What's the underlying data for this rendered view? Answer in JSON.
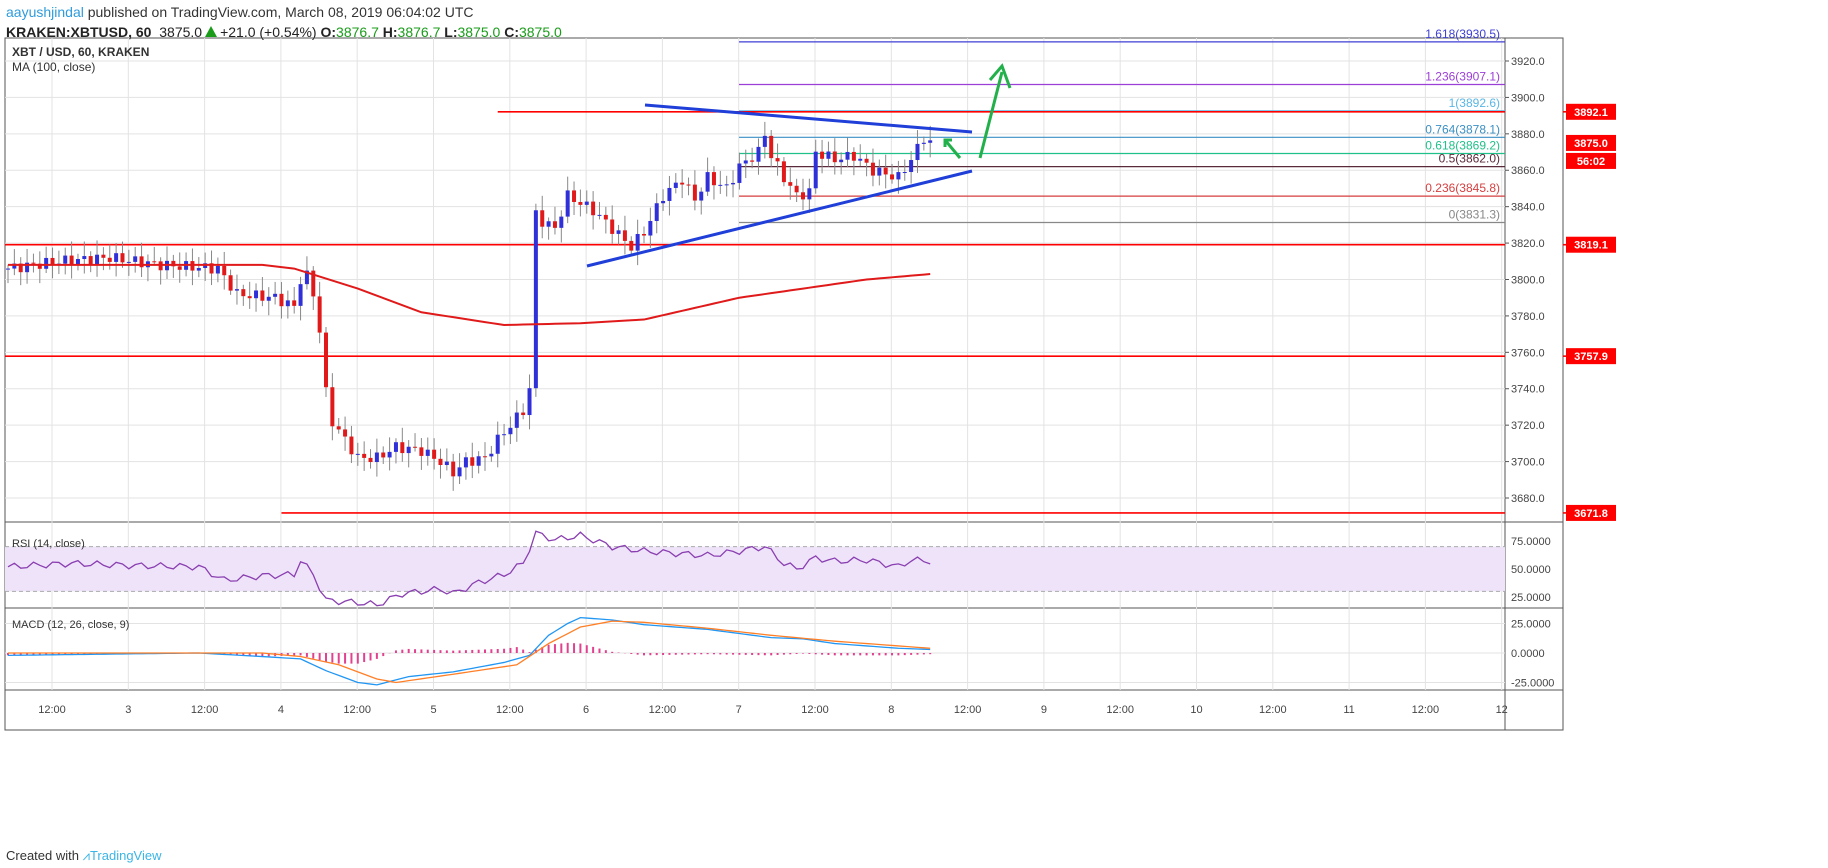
{
  "header": {
    "user": "aayushjindal",
    "published": " published on TradingView.com, March 08, 2019 06:04:02 UTC",
    "symbol": "KRAKEN:XBTUSD, 60",
    "last": "3875.0",
    "change": "+21.0 (+0.54%)",
    "o_label": "O:",
    "o": "3876.7",
    "h_label": "H:",
    "h": "3876.7",
    "l_label": "L:",
    "l": "3875.0",
    "c_label": "C:",
    "c": "3875.0"
  },
  "footer": {
    "created": "Created with",
    "brand": "TradingView"
  },
  "chart_data": {
    "type": "candlestick",
    "title": "XBT / USD, 60, KRAKEN",
    "ma_label": "MA (100, close)",
    "ylim": [
      3660,
      3940
    ],
    "y_ticks": [
      "3680.0",
      "3700.0",
      "3720.0",
      "3740.0",
      "3760.0",
      "3780.0",
      "3800.0",
      "3820.0",
      "3840.0",
      "3860.0",
      "3880.0",
      "3900.0",
      "3920.0"
    ],
    "x_ticks": [
      "12:00",
      "3",
      "12:00",
      "4",
      "12:00",
      "5",
      "12:00",
      "6",
      "12:00",
      "7",
      "12:00",
      "8",
      "12:00",
      "9",
      "12:00",
      "10",
      "12:00",
      "11",
      "12:00",
      "12"
    ],
    "price_path": [
      [
        0,
        3806
      ],
      [
        8,
        3810
      ],
      [
        16,
        3812
      ],
      [
        24,
        3808
      ],
      [
        33,
        3806
      ],
      [
        36,
        3792
      ],
      [
        42,
        3790
      ],
      [
        45,
        3785
      ],
      [
        46,
        3800
      ],
      [
        47,
        3802
      ],
      [
        48,
        3792
      ],
      [
        49,
        3772
      ],
      [
        50,
        3738
      ],
      [
        51,
        3722
      ],
      [
        53,
        3712
      ],
      [
        55,
        3702
      ],
      [
        58,
        3702
      ],
      [
        61,
        3708
      ],
      [
        65,
        3706
      ],
      [
        68,
        3700
      ],
      [
        70,
        3694
      ],
      [
        72,
        3700
      ],
      [
        75,
        3702
      ],
      [
        77,
        3712
      ],
      [
        79,
        3720
      ],
      [
        81,
        3728
      ],
      [
        82,
        3740
      ],
      [
        83,
        3836
      ],
      [
        84,
        3832
      ],
      [
        86,
        3828
      ],
      [
        88,
        3846
      ],
      [
        92,
        3838
      ],
      [
        95,
        3828
      ],
      [
        98,
        3818
      ],
      [
        100,
        3826
      ],
      [
        103,
        3846
      ],
      [
        106,
        3855
      ],
      [
        108,
        3844
      ],
      [
        110,
        3856
      ],
      [
        113,
        3850
      ],
      [
        115,
        3862
      ],
      [
        118,
        3870
      ],
      [
        119,
        3880
      ],
      [
        120,
        3868
      ],
      [
        122,
        3856
      ],
      [
        124,
        3846
      ],
      [
        126,
        3848
      ],
      [
        127,
        3870
      ],
      [
        130,
        3866
      ],
      [
        133,
        3868
      ],
      [
        136,
        3860
      ],
      [
        140,
        3856
      ],
      [
        142,
        3866
      ],
      [
        144,
        3878
      ],
      [
        145,
        3875
      ]
    ],
    "ma_path": [
      [
        0,
        3808
      ],
      [
        40,
        3808
      ],
      [
        45,
        3806
      ],
      [
        55,
        3795
      ],
      [
        65,
        3782
      ],
      [
        78,
        3775
      ],
      [
        90,
        3776
      ],
      [
        100,
        3778
      ],
      [
        115,
        3790
      ],
      [
        125,
        3795
      ],
      [
        135,
        3800
      ],
      [
        145,
        3803
      ]
    ],
    "horizontal_levels": [
      {
        "price": 3892.1,
        "label": "3892.1",
        "from_bar": 77
      },
      {
        "price": 3819.1,
        "label": "3819.1",
        "from_bar": 0
      },
      {
        "price": 3757.9,
        "label": "3757.9",
        "from_bar": 0
      },
      {
        "price": 3671.8,
        "label": "3671.8",
        "from_bar": 43
      }
    ],
    "last_price_label": "3875.0",
    "countdown": "56:02",
    "fib_levels": [
      {
        "ratio": "1.618",
        "price": 3930.5,
        "label": "1.618(3930.5)",
        "color": "#3f3fd6"
      },
      {
        "ratio": "1.236",
        "price": 3907.1,
        "label": "1.236(3907.1)",
        "color": "#9c3fd6"
      },
      {
        "ratio": "1",
        "price": 3892.6,
        "label": "1(3892.6)",
        "color": "#59b6e6"
      },
      {
        "ratio": "0.764",
        "price": 3878.1,
        "label": "0.764(3878.1)",
        "color": "#3a8fc4"
      },
      {
        "ratio": "0.618",
        "price": 3869.2,
        "label": "0.618(3869.2)",
        "color": "#20c08a"
      },
      {
        "ratio": "0.5",
        "price": 3862.0,
        "label": "0.5(3862.0)",
        "color": "#5a2a3a"
      },
      {
        "ratio": "0.236",
        "price": 3845.8,
        "label": "0.236(3845.8)",
        "color": "#d63f3f"
      },
      {
        "ratio": "0",
        "price": 3831.3,
        "label": "0(3831.3)",
        "color": "#888888"
      }
    ],
    "rsi": {
      "label": "RSI (14, close)",
      "ticks": [
        "75.0000",
        "50.0000",
        "25.0000"
      ],
      "path": [
        [
          0,
          52
        ],
        [
          10,
          55
        ],
        [
          20,
          53
        ],
        [
          30,
          52
        ],
        [
          34,
          40
        ],
        [
          40,
          44
        ],
        [
          45,
          45
        ],
        [
          46,
          58
        ],
        [
          48,
          45
        ],
        [
          50,
          22
        ],
        [
          55,
          20
        ],
        [
          58,
          18
        ],
        [
          62,
          28
        ],
        [
          68,
          32
        ],
        [
          70,
          28
        ],
        [
          74,
          38
        ],
        [
          78,
          45
        ],
        [
          81,
          55
        ],
        [
          83,
          82
        ],
        [
          86,
          76
        ],
        [
          90,
          80
        ],
        [
          95,
          70
        ],
        [
          100,
          66
        ],
        [
          105,
          64
        ],
        [
          110,
          62
        ],
        [
          115,
          66
        ],
        [
          119,
          70
        ],
        [
          122,
          55
        ],
        [
          124,
          50
        ],
        [
          127,
          60
        ],
        [
          130,
          57
        ],
        [
          135,
          58
        ],
        [
          140,
          52
        ],
        [
          142,
          58
        ],
        [
          145,
          57
        ]
      ]
    },
    "macd": {
      "label": "MACD (12, 26, close, 9)",
      "ticks": [
        "25.0000",
        "0.0000",
        "-25.0000"
      ],
      "macd_path": [
        [
          0,
          -2
        ],
        [
          30,
          0
        ],
        [
          40,
          -3
        ],
        [
          46,
          -5
        ],
        [
          50,
          -15
        ],
        [
          55,
          -25
        ],
        [
          58,
          -27
        ],
        [
          63,
          -20
        ],
        [
          70,
          -16
        ],
        [
          78,
          -8
        ],
        [
          82,
          -2
        ],
        [
          85,
          15
        ],
        [
          88,
          25
        ],
        [
          90,
          30
        ],
        [
          95,
          28
        ],
        [
          100,
          24
        ],
        [
          110,
          20
        ],
        [
          120,
          13
        ],
        [
          125,
          12
        ],
        [
          130,
          8
        ],
        [
          140,
          4
        ],
        [
          145,
          3
        ]
      ],
      "signal_path": [
        [
          0,
          0
        ],
        [
          40,
          0
        ],
        [
          46,
          -3
        ],
        [
          52,
          -10
        ],
        [
          58,
          -22
        ],
        [
          61,
          -25
        ],
        [
          70,
          -18
        ],
        [
          80,
          -10
        ],
        [
          85,
          8
        ],
        [
          90,
          22
        ],
        [
          95,
          27
        ],
        [
          100,
          26
        ],
        [
          110,
          21
        ],
        [
          120,
          15
        ],
        [
          130,
          10
        ],
        [
          140,
          6
        ],
        [
          145,
          4
        ]
      ],
      "colors": {
        "macd": "#2196f3",
        "signal": "#ff7f27",
        "hist": "#e0428f"
      }
    },
    "colors": {
      "up": "#3030d8",
      "down": "#e01a1a",
      "ma": "#e01a1a",
      "trend": "#1f3fd8",
      "arrow": "#22b04a",
      "level": "#ff0000"
    }
  }
}
